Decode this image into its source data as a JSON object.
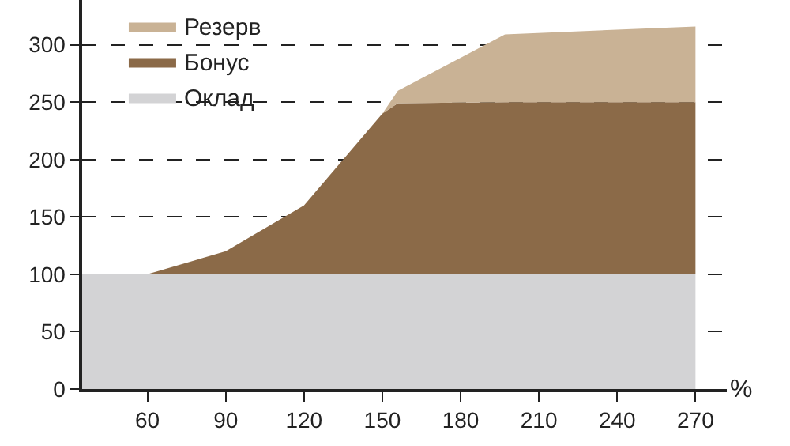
{
  "chart_data": {
    "type": "area",
    "stacked": true,
    "xlabel": "%",
    "x": [
      35,
      60,
      90,
      120,
      150,
      156,
      197,
      270
    ],
    "series": [
      {
        "name": "Оклад",
        "color": "#d3d3d5",
        "values": [
          100,
          100,
          100,
          100,
          100,
          100,
          100,
          100
        ]
      },
      {
        "name": "Бонус",
        "color": "#8b6a48",
        "values": [
          0,
          0,
          20,
          60,
          140,
          149,
          150,
          150
        ]
      },
      {
        "name": "Резерв",
        "color": "#c9b295",
        "values": [
          0,
          0,
          0,
          0,
          0,
          11,
          59,
          66
        ]
      }
    ],
    "xlim": [
      35,
      282
    ],
    "ylim": [
      0,
      339
    ],
    "xticks": [
      60,
      90,
      120,
      150,
      180,
      210,
      240,
      270
    ],
    "yticks": [
      0,
      50,
      100,
      150,
      200,
      250,
      300
    ],
    "grid": "y",
    "legend": "top left"
  }
}
